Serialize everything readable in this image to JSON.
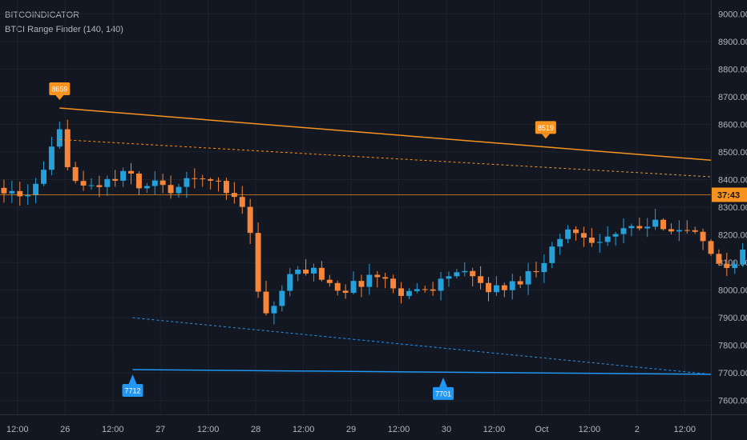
{
  "header": {
    "symbol": "BITCOINDICATOR",
    "indicator": "BTCI Range Finder (140, 140)"
  },
  "chart_data": {
    "type": "candlestick",
    "ylim": [
      7550,
      9050
    ],
    "y_ticks": [
      7600,
      7700,
      7800,
      7900,
      8000,
      8100,
      8200,
      8300,
      8400,
      8500,
      8600,
      8700,
      8800,
      8900,
      9000
    ],
    "y_tick_labels": [
      "7600.00",
      "7700.00",
      "7800.00",
      "7900.00",
      "8000.00",
      "8100.00",
      "8200.00",
      "8300.00",
      "8400.00",
      "8500.00",
      "8600.00",
      "8700.00",
      "8800.00",
      "8900.00",
      "9000.00"
    ],
    "x_ticks": [
      {
        "label": "12:00",
        "pos": 0
      },
      {
        "label": "26",
        "pos": 6
      },
      {
        "label": "12:00",
        "pos": 12
      },
      {
        "label": "27",
        "pos": 18
      },
      {
        "label": "12:00",
        "pos": 24
      },
      {
        "label": "28",
        "pos": 30
      },
      {
        "label": "12:00",
        "pos": 36
      },
      {
        "label": "29",
        "pos": 42
      },
      {
        "label": "12:00",
        "pos": 48
      },
      {
        "label": "30",
        "pos": 54
      },
      {
        "label": "12:00",
        "pos": 60
      },
      {
        "label": "Oct",
        "pos": 66
      },
      {
        "label": "12:00",
        "pos": 72
      },
      {
        "label": "2",
        "pos": 78
      },
      {
        "label": "12:00",
        "pos": 84
      }
    ],
    "x_range": [
      -2.2,
      87.3
    ],
    "candles_anchor": -2.2,
    "candles_per_unit": 4,
    "close_path": [
      [
        0,
        8370
      ],
      [
        5,
        8370
      ],
      [
        10,
        8320
      ],
      [
        14,
        8350
      ],
      [
        22,
        8380
      ],
      [
        28,
        8500
      ],
      [
        30,
        8630
      ],
      [
        34,
        8500
      ],
      [
        38,
        8430
      ],
      [
        42,
        8360
      ],
      [
        50,
        8380
      ],
      [
        60,
        8400
      ],
      [
        66,
        8420
      ],
      [
        70,
        8420
      ],
      [
        74,
        8340
      ],
      [
        78,
        8400
      ],
      [
        86,
        8360
      ],
      [
        94,
        8380
      ],
      [
        100,
        8400
      ],
      [
        104,
        8420
      ],
      [
        108,
        8380
      ],
      [
        112,
        8390
      ],
      [
        116,
        8360
      ],
      [
        124,
        8320
      ],
      [
        128,
        8200
      ],
      [
        132,
        8000
      ],
      [
        136,
        7920
      ],
      [
        138,
        7900
      ],
      [
        144,
        8000
      ],
      [
        150,
        8060
      ],
      [
        158,
        8080
      ],
      [
        166,
        8040
      ],
      [
        174,
        8000
      ],
      [
        182,
        8020
      ],
      [
        190,
        8060
      ],
      [
        198,
        8020
      ],
      [
        206,
        7990
      ],
      [
        214,
        8000
      ],
      [
        222,
        8020
      ],
      [
        230,
        8070
      ],
      [
        240,
        8040
      ],
      [
        250,
        8000
      ],
      [
        260,
        8020
      ],
      [
        272,
        8080
      ],
      [
        280,
        8150
      ],
      [
        288,
        8220
      ],
      [
        296,
        8200
      ],
      [
        304,
        8180
      ],
      [
        312,
        8200
      ],
      [
        320,
        8220
      ],
      [
        328,
        8230
      ],
      [
        336,
        8240
      ],
      [
        344,
        8220
      ],
      [
        352,
        8200
      ],
      [
        360,
        8120
      ],
      [
        368,
        8080
      ],
      [
        376,
        8140
      ],
      [
        384,
        8160
      ],
      [
        392,
        8180
      ],
      [
        400,
        8200
      ],
      [
        408,
        8220
      ],
      [
        416,
        8200
      ],
      [
        424,
        8180
      ],
      [
        432,
        8150
      ],
      [
        440,
        8120
      ],
      [
        448,
        8100
      ],
      [
        456,
        8080
      ],
      [
        464,
        8060
      ],
      [
        472,
        8020
      ],
      [
        480,
        8000
      ],
      [
        488,
        7980
      ],
      [
        496,
        7970
      ],
      [
        504,
        7980
      ],
      [
        512,
        8020
      ],
      [
        520,
        8060
      ],
      [
        528,
        8050
      ],
      [
        536,
        8020
      ],
      [
        544,
        8000
      ],
      [
        552,
        7960
      ],
      [
        556,
        7800
      ],
      [
        560,
        7790
      ],
      [
        566,
        7770
      ],
      [
        572,
        7800
      ],
      [
        578,
        7900
      ],
      [
        584,
        7980
      ],
      [
        592,
        8060
      ],
      [
        600,
        8140
      ],
      [
        606,
        8260
      ],
      [
        612,
        8300
      ],
      [
        618,
        8320
      ],
      [
        626,
        8300
      ],
      [
        634,
        8270
      ],
      [
        642,
        8280
      ],
      [
        650,
        8270
      ],
      [
        656,
        8280
      ],
      [
        662,
        8380
      ],
      [
        668,
        8450
      ],
      [
        676,
        8430
      ],
      [
        684,
        8410
      ],
      [
        692,
        8400
      ],
      [
        700,
        8390
      ],
      [
        706,
        8370
      ],
      [
        714,
        8345
      ]
    ],
    "series": [
      {
        "color": "#f7931e",
        "points": [
          [
            5.3,
            8659
          ],
          [
            87.3,
            8470
          ]
        ]
      },
      {
        "color": "#f7931e",
        "dashed": true,
        "points": [
          [
            5.3,
            8545
          ],
          [
            87.3,
            8410
          ]
        ]
      },
      {
        "color": "#2196f3",
        "points": [
          [
            14.5,
            7712
          ],
          [
            87.3,
            7695
          ]
        ]
      },
      {
        "color": "#2196f3",
        "dashed": true,
        "points": [
          [
            14.5,
            7900
          ],
          [
            87.3,
            7695
          ]
        ]
      }
    ],
    "current_price_line": {
      "value": 8345,
      "label": "37:43",
      "color": "#f7931e"
    },
    "annotations": [
      {
        "label": "8659",
        "x": 5.3,
        "y": 8659,
        "color": "#f7931e",
        "side": "above"
      },
      {
        "label": "8519",
        "x": 66.5,
        "y": 8519,
        "color": "#f7931e",
        "side": "above"
      },
      {
        "label": "7712",
        "x": 14.5,
        "y": 7712,
        "color": "#2196f3",
        "side": "below"
      },
      {
        "label": "7701",
        "x": 53.6,
        "y": 7701,
        "color": "#2196f3",
        "side": "below"
      }
    ],
    "colors": {
      "up": "#26a0d8",
      "down": "#f7863a",
      "grid": "#1e222d",
      "axis_text": "#b2b5be",
      "background": "#131722"
    }
  }
}
